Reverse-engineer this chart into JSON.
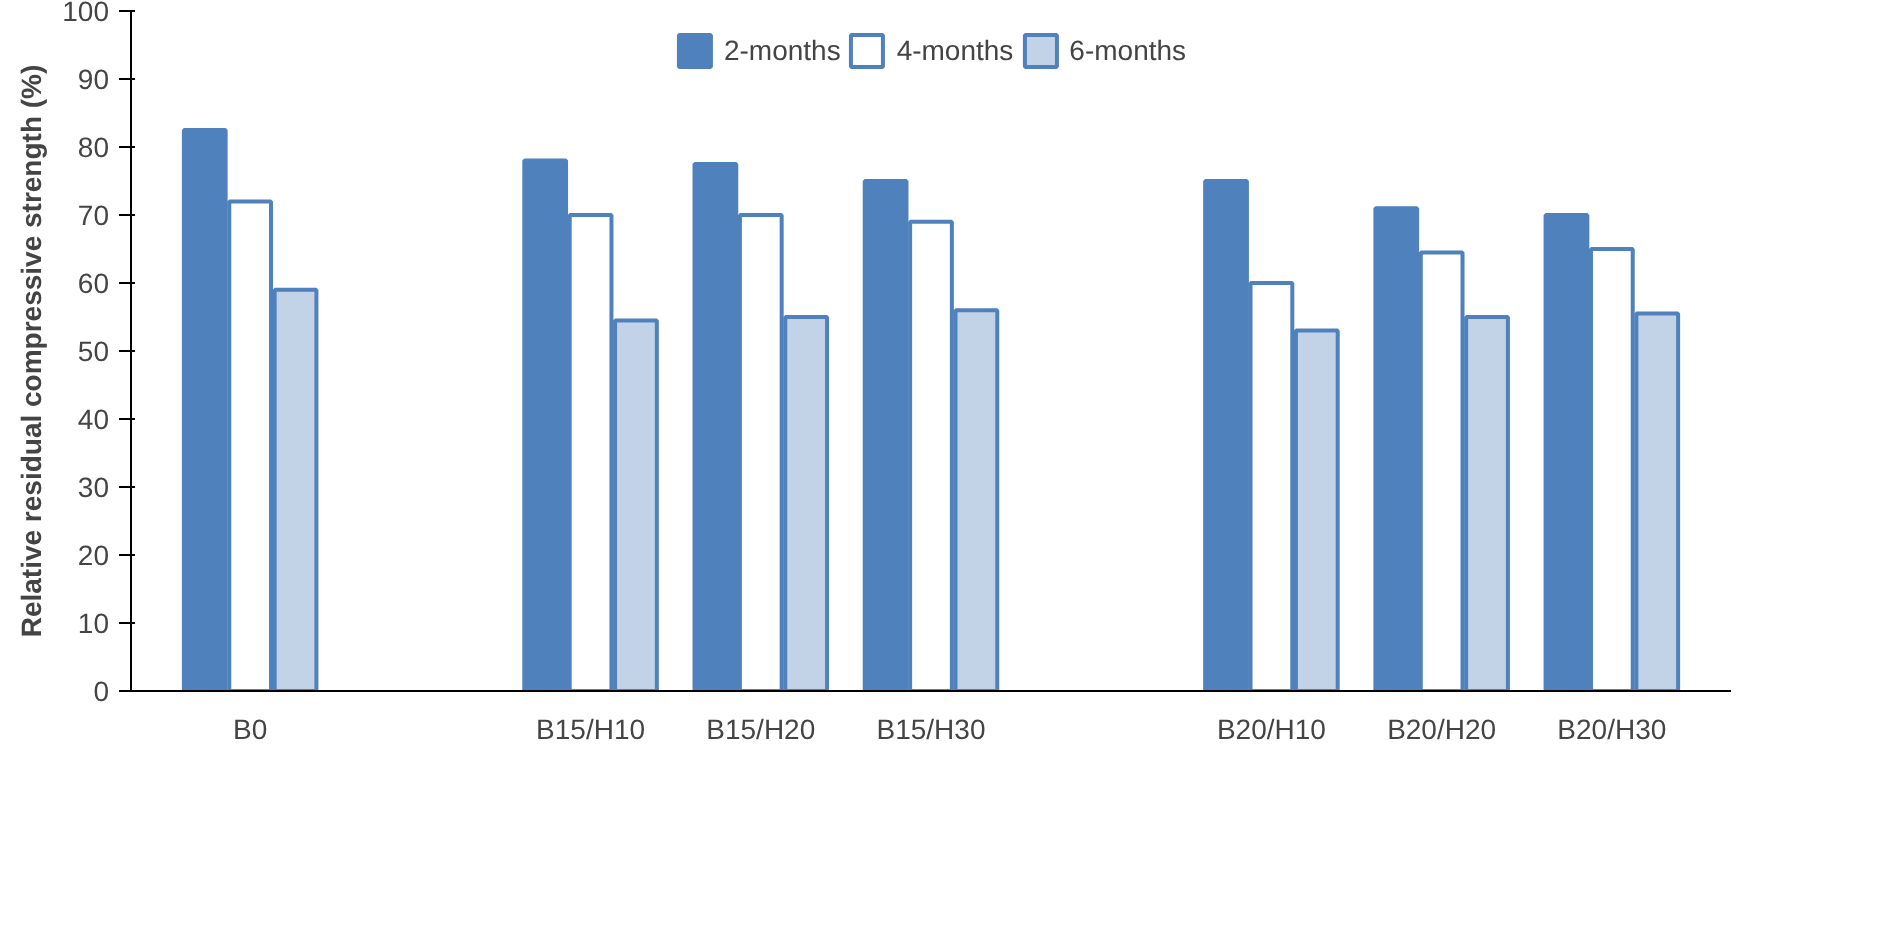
{
  "chart_data": {
    "type": "bar",
    "ylabel": "Relative residual compressive strength (%)",
    "categories": [
      "B0",
      null,
      "B15/H10",
      "B15/H20",
      "B15/H30",
      null,
      "B20/H10",
      "B20/H20",
      "B20/H30"
    ],
    "series": [
      {
        "name": "2-months",
        "color": "#4f81bd",
        "values": [
          82.5,
          null,
          78,
          77.5,
          75,
          null,
          75,
          71,
          70
        ]
      },
      {
        "name": "4-months",
        "color": "#4f81bd",
        "values": [
          72,
          null,
          70,
          70,
          69,
          null,
          60,
          64.5,
          65
        ]
      },
      {
        "name": "6-months",
        "color": "#4f81bd",
        "values": [
          59,
          null,
          54.5,
          55,
          56,
          null,
          53,
          55,
          55.5
        ]
      }
    ],
    "ylim": [
      0,
      100
    ],
    "yticks": [
      0,
      10,
      20,
      30,
      40,
      50,
      60,
      70,
      80,
      90,
      100
    ],
    "grid": false,
    "legend": "top"
  }
}
